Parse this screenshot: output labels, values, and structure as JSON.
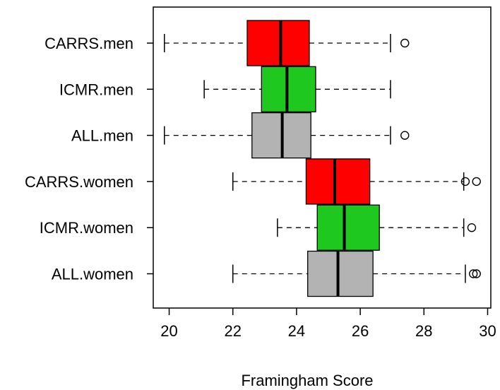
{
  "chart_data": {
    "type": "boxplot",
    "orientation": "horizontal",
    "title": "",
    "xlabel": "Framingham Score",
    "ylabel": "",
    "xlim": [
      19.5,
      30.1
    ],
    "xticks": [
      20,
      22,
      24,
      26,
      28,
      30
    ],
    "grid": false,
    "legend": "none",
    "series": [
      {
        "name": "CARRS.men",
        "color": "#ff0000",
        "whisker_low": 19.85,
        "q1": 22.45,
        "median": 23.5,
        "q3": 24.4,
        "whisker_high": 26.95,
        "outliers": [
          27.4
        ]
      },
      {
        "name": "ICMR.men",
        "color": "#1ec81e",
        "whisker_low": 21.1,
        "q1": 22.9,
        "median": 23.7,
        "q3": 24.6,
        "whisker_high": 26.95,
        "outliers": []
      },
      {
        "name": "ALL.men",
        "color": "#b3b3b3",
        "whisker_low": 19.85,
        "q1": 22.6,
        "median": 23.55,
        "q3": 24.45,
        "whisker_high": 26.95,
        "outliers": [
          27.4
        ]
      },
      {
        "name": "CARRS.women",
        "color": "#ff0000",
        "whisker_low": 22.0,
        "q1": 24.3,
        "median": 25.2,
        "q3": 26.3,
        "whisker_high": 29.25,
        "outliers": [
          29.3,
          29.65
        ]
      },
      {
        "name": "ICMR.women",
        "color": "#1ec81e",
        "whisker_low": 23.4,
        "q1": 24.65,
        "median": 25.5,
        "q3": 26.6,
        "whisker_high": 29.25,
        "outliers": [
          29.5
        ]
      },
      {
        "name": "ALL.women",
        "color": "#b3b3b3",
        "whisker_low": 22.0,
        "q1": 24.35,
        "median": 25.3,
        "q3": 26.4,
        "whisker_high": 29.3,
        "outliers": [
          29.55,
          29.65
        ]
      }
    ]
  }
}
